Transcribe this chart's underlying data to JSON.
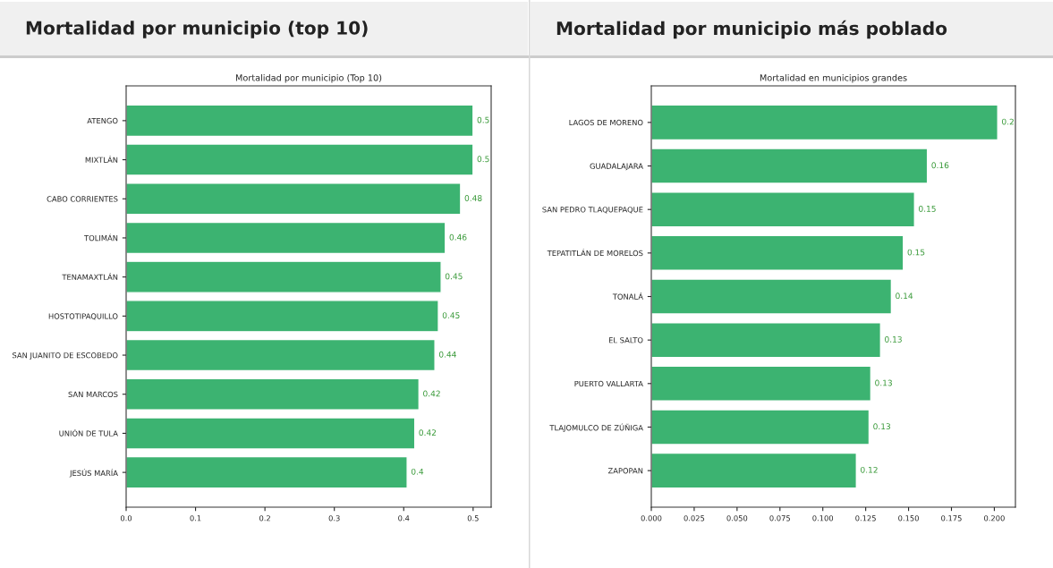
{
  "chart_data": [
    {
      "type": "bar",
      "orientation": "horizontal",
      "title": "Mortalidad por municipio (top 10)",
      "subtitle": "Mortalidad por municipio (Top 10)",
      "categories": [
        "ATENGO",
        "MIXTLÁN",
        "CABO CORRIENTES",
        "TOLIMÁN",
        "TENAMAXTLÁN",
        "HOSTOTIPAQUILLO",
        "SAN JUANITO DE ESCOBEDO",
        "SAN MARCOS",
        "UNIÓN DE TULA",
        "JESÚS MARÍA"
      ],
      "values": [
        0.5,
        0.5,
        0.482,
        0.46,
        0.454,
        0.45,
        0.445,
        0.422,
        0.416,
        0.405
      ],
      "value_labels": [
        "0.5",
        "0.5",
        "0.48",
        "0.46",
        "0.45",
        "0.45",
        "0.44",
        "0.42",
        "0.42",
        "0.4"
      ],
      "color": "#3cb371",
      "xlim": [
        0,
        0.526
      ],
      "xticks": [
        {
          "value": 0,
          "label": "0.0"
        },
        0.1,
        0.2,
        0.3,
        0.4,
        0.5
      ],
      "grid": false,
      "legend": false
    },
    {
      "type": "bar",
      "orientation": "horizontal",
      "title": "Mortalidad por municipio más poblado",
      "subtitle": "Mortalidad en municipios grandes",
      "categories": [
        "LAGOS DE MORENO",
        "GUADALAJARA",
        "SAN PEDRO TLAQUEPAQUE",
        "TEPATITLÁN DE MORELOS",
        "TONALÁ",
        "EL SALTO",
        "PUERTO VALLARTA",
        "TLAJOMULCO DE ZÚÑIGA",
        "ZAPOPAN"
      ],
      "values": [
        0.202,
        0.161,
        0.1535,
        0.147,
        0.14,
        0.1337,
        0.128,
        0.127,
        0.1196
      ],
      "value_labels": [
        "0.2",
        "0.16",
        "0.15",
        "0.15",
        "0.14",
        "0.13",
        "0.13",
        "0.13",
        "0.12"
      ],
      "color": "#3cb371",
      "xlim": [
        0,
        0.2123
      ],
      "xticks": [
        {
          "value": 0,
          "label": "0.000"
        },
        {
          "value": 0.025,
          "label": "0.025"
        },
        {
          "value": 0.05,
          "label": "0.050"
        },
        {
          "value": 0.075,
          "label": "0.075"
        },
        {
          "value": 0.1,
          "label": "0.100"
        },
        {
          "value": 0.125,
          "label": "0.125"
        },
        {
          "value": 0.15,
          "label": "0.150"
        },
        {
          "value": 0.175,
          "label": "0.175"
        },
        {
          "value": 0.2,
          "label": "0.200"
        }
      ],
      "grid": false,
      "legend": false
    }
  ]
}
